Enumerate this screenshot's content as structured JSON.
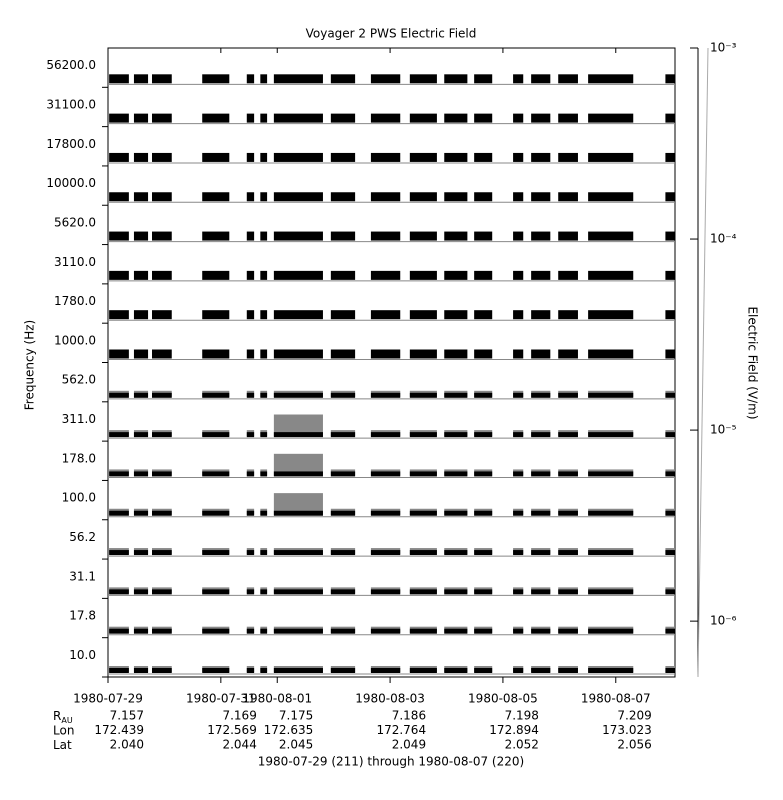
{
  "chart_data": {
    "type": "stacked-timeseries",
    "title": "Voyager 2 PWS Electric Field",
    "ylabel": "Frequency (Hz)",
    "xlabel": "1980-07-29 (211) through 1980-08-07 (220)",
    "channels": [
      "56200.0",
      "31100.0",
      "17800.0",
      "10000.0",
      "5620.0",
      "3110.0",
      "1780.0",
      "1000.0",
      "562.0",
      "311.0",
      "178.0",
      "100.0",
      "56.2",
      "31.1",
      "17.8",
      "10.0"
    ],
    "xlim": [
      211,
      221.05
    ],
    "xticks": [
      {
        "value": 211,
        "label": "1980-07-29"
      },
      {
        "value": 213,
        "label": "1980-07-31"
      },
      {
        "value": 214,
        "label": "1980-08-01"
      },
      {
        "value": 216,
        "label": "1980-08-03"
      },
      {
        "value": 218,
        "label": "1980-08-05"
      },
      {
        "value": 220,
        "label": "1980-08-07"
      }
    ],
    "segments": [
      [
        211.02,
        211.37
      ],
      [
        211.46,
        211.71
      ],
      [
        211.78,
        212.13
      ],
      [
        212.67,
        213.15
      ],
      [
        213.46,
        213.59
      ],
      [
        213.7,
        213.82
      ],
      [
        213.94,
        214.81
      ],
      [
        214.95,
        215.38
      ],
      [
        215.66,
        216.18
      ],
      [
        216.35,
        216.83
      ],
      [
        216.96,
        217.37
      ],
      [
        217.49,
        217.81
      ],
      [
        218.18,
        218.36
      ],
      [
        218.5,
        218.84
      ],
      [
        218.98,
        219.33
      ],
      [
        219.51,
        220.31
      ],
      [
        220.88,
        221.05
      ]
    ],
    "ephemeris": [
      {
        "name": "R",
        "sub": "AU",
        "values": [
          "7.157",
          "7.169",
          "7.175",
          "7.186",
          "7.198",
          "7.209"
        ]
      },
      {
        "name": "Lon",
        "values": [
          "172.439",
          "172.569",
          "172.635",
          "172.764",
          "172.894",
          "173.023"
        ]
      },
      {
        "name": "Lat",
        "values": [
          "2.040",
          "2.044",
          "2.045",
          "2.049",
          "2.052",
          "2.056"
        ]
      }
    ],
    "colorbar": {
      "label": "Electric Field (V/m)",
      "scale": "log",
      "lim": [
        5.1e-07,
        0.001
      ],
      "ticks": [
        {
          "value": 0.001,
          "label": "10⁻³"
        },
        {
          "value": 0.0001,
          "label": "10⁻⁴"
        },
        {
          "value": 1e-05,
          "label": "10⁻⁵"
        },
        {
          "value": 1e-06,
          "label": "10⁻⁶"
        }
      ]
    }
  }
}
